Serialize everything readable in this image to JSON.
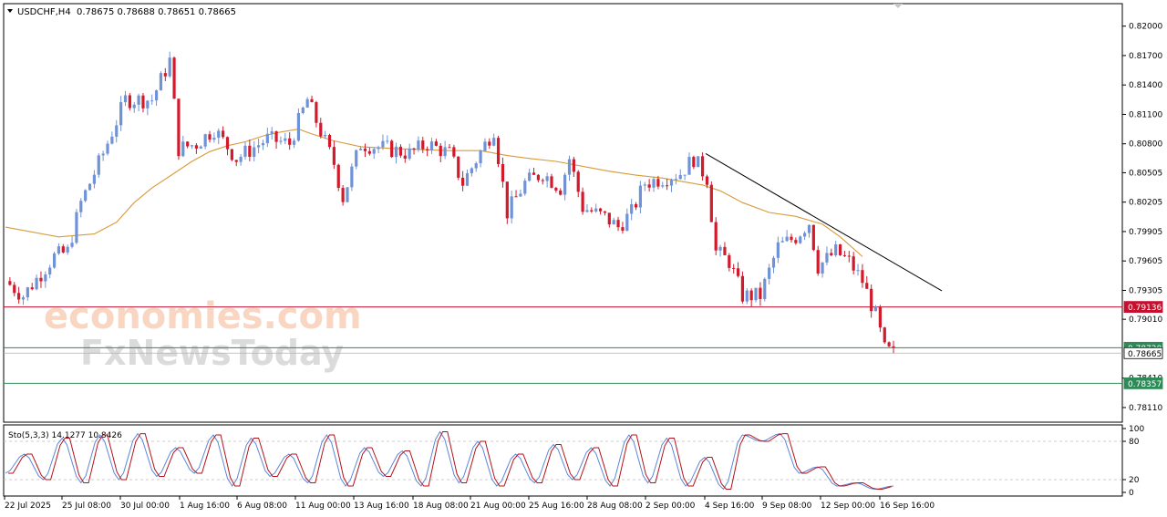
{
  "header": {
    "symbol": "USDCHF,H4",
    "ohlc": "0.78675 0.78688 0.78651 0.78665"
  },
  "watermark": {
    "line1": "economies.com",
    "line2": "FxNewsToday"
  },
  "colors": {
    "bull": "#6f93d6",
    "bear": "#d11b2c",
    "ma": "#d89a3a",
    "trendline": "#000000",
    "resistance_line": "#c8102e",
    "support_line": "#2e8b57",
    "stoch_main": "#5c86d9",
    "stoch_signal": "#b5121b"
  },
  "chart_data": [
    {
      "type": "candlestick",
      "title": "USDCHF,H4",
      "ylim": [
        0.7797,
        0.8222
      ],
      "y_ticks": [
        "0.82000",
        "0.81700",
        "0.81400",
        "0.81100",
        "0.80800",
        "0.80505",
        "0.80205",
        "0.79905",
        "0.79605",
        "0.79305",
        "0.79010",
        "0.78410",
        "0.78110"
      ],
      "x_tick_labels": [
        "22 Jul 2025",
        "25 Jul 08:00",
        "30 Jul 00:00",
        "1 Aug 16:00",
        "6 Aug 08:00",
        "11 Aug 00:00",
        "13 Aug 16:00",
        "18 Aug 08:00",
        "21 Aug 00:00",
        "25 Aug 16:00",
        "28 Aug 08:00",
        "2 Sep 00:00",
        "4 Sep 16:00",
        "9 Sep 08:00",
        "12 Sep 00:00",
        "16 Sep 16:00"
      ],
      "price_markers": [
        {
          "label": "0.79136",
          "value": 0.79136,
          "kind": "resistance"
        },
        {
          "label": "0.78720",
          "value": 0.7872,
          "kind": "support"
        },
        {
          "label": "0.78665",
          "value": 0.78665,
          "kind": "current"
        },
        {
          "label": "0.78357",
          "value": 0.78357,
          "kind": "support"
        }
      ],
      "trendline": [
        0.807,
        0.793
      ],
      "anchors": [
        [
          0,
          0.794
        ],
        [
          4,
          0.7925
        ],
        [
          11,
          0.7965
        ],
        [
          14,
          0.797
        ],
        [
          17,
          0.802
        ],
        [
          22,
          0.807
        ],
        [
          27,
          0.8125
        ],
        [
          33,
          0.8125
        ],
        [
          37,
          0.8165
        ],
        [
          39,
          0.8075
        ],
        [
          43,
          0.808
        ],
        [
          47,
          0.8095
        ],
        [
          52,
          0.8065
        ],
        [
          59,
          0.8085
        ],
        [
          64,
          0.808
        ],
        [
          68,
          0.8125
        ],
        [
          74,
          0.806
        ],
        [
          76,
          0.8025
        ],
        [
          80,
          0.808
        ],
        [
          86,
          0.8075
        ],
        [
          91,
          0.807
        ],
        [
          95,
          0.808
        ],
        [
          100,
          0.807
        ],
        [
          103,
          0.804
        ],
        [
          110,
          0.8095
        ],
        [
          113,
          0.801
        ],
        [
          117,
          0.804
        ],
        [
          121,
          0.805
        ],
        [
          125,
          0.8035
        ],
        [
          127,
          0.8065
        ],
        [
          130,
          0.8015
        ],
        [
          135,
          0.8005
        ],
        [
          138,
          0.7995
        ],
        [
          141,
          0.801
        ],
        [
          144,
          0.804
        ],
        [
          148,
          0.8045
        ],
        [
          152,
          0.805
        ],
        [
          155,
          0.8065
        ],
        [
          158,
          0.8045
        ],
        [
          160,
          0.797
        ],
        [
          163,
          0.796
        ],
        [
          166,
          0.7925
        ],
        [
          170,
          0.7925
        ],
        [
          174,
          0.7975
        ],
        [
          178,
          0.7985
        ],
        [
          181,
          0.8
        ],
        [
          183,
          0.7955
        ],
        [
          187,
          0.797
        ],
        [
          190,
          0.796
        ],
        [
          193,
          0.794
        ],
        [
          196,
          0.7905
        ],
        [
          198,
          0.787
        ],
        [
          200,
          0.7866
        ]
      ],
      "moving_average": [
        [
          0,
          0.7995
        ],
        [
          12,
          0.7985
        ],
        [
          20,
          0.7988
        ],
        [
          25,
          0.8
        ],
        [
          29,
          0.802
        ],
        [
          33,
          0.8035
        ],
        [
          38,
          0.805
        ],
        [
          42,
          0.8062
        ],
        [
          46,
          0.8072
        ],
        [
          50,
          0.8078
        ],
        [
          54,
          0.8082
        ],
        [
          58,
          0.8088
        ],
        [
          62,
          0.8092
        ],
        [
          66,
          0.8095
        ],
        [
          69,
          0.809
        ],
        [
          74,
          0.8083
        ],
        [
          80,
          0.8077
        ],
        [
          88,
          0.8075
        ],
        [
          94,
          0.8074
        ],
        [
          100,
          0.8073
        ],
        [
          107,
          0.8073
        ],
        [
          113,
          0.8068
        ],
        [
          118,
          0.8065
        ],
        [
          124,
          0.8062
        ],
        [
          130,
          0.8057
        ],
        [
          136,
          0.8052
        ],
        [
          142,
          0.8048
        ],
        [
          148,
          0.8045
        ],
        [
          153,
          0.8041
        ],
        [
          157,
          0.8038
        ],
        [
          161,
          0.8032
        ],
        [
          166,
          0.802
        ],
        [
          172,
          0.801
        ],
        [
          178,
          0.8006
        ],
        [
          184,
          0.7998
        ],
        [
          188,
          0.7985
        ],
        [
          193,
          0.7965
        ]
      ]
    },
    {
      "type": "line",
      "title": "Sto(5,3,3) 14.1277 10.8426",
      "ylim": [
        0,
        100
      ],
      "y_ticks": [
        "100",
        "80",
        "20",
        "0"
      ],
      "levels": [
        80,
        20
      ],
      "series": [
        {
          "values": [
            30,
            60,
            20,
            85,
            15,
            90,
            20,
            92,
            25,
            70,
            30,
            90,
            10,
            85,
            25,
            60,
            15,
            90,
            10,
            70,
            25,
            65,
            10,
            95,
            15,
            80,
            10,
            60,
            15,
            75,
            20,
            70,
            10,
            90,
            15,
            85,
            10,
            55,
            5,
            90,
            80,
            92,
            30,
            40,
            10,
            15,
            5,
            10
          ]
        }
      ]
    }
  ]
}
